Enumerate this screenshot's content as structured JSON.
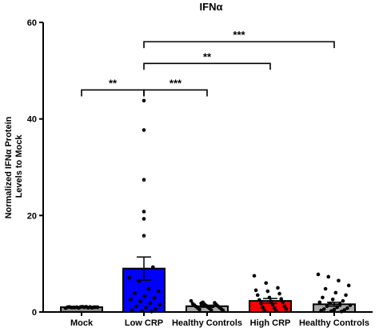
{
  "chart_data": {
    "type": "bar",
    "title": "IFNα",
    "ylabel": "Normalized IFNα Protein Levels to Mock",
    "ylabel_lines": [
      "Normalized IFNα Protein",
      "Levels to Mock"
    ],
    "xlabel": "",
    "ylim": [
      0,
      60
    ],
    "yticks": [
      0,
      20,
      40,
      60
    ],
    "categories": [
      "Mock",
      "Low CRP",
      "Healthy Controls",
      "High CRP",
      "Healthy Controls"
    ],
    "values": [
      1.0,
      9.0,
      1.2,
      2.3,
      1.6
    ],
    "errors": [
      0.1,
      2.4,
      0.2,
      0.5,
      0.4
    ],
    "bar_colors": [
      "#8c8c8c",
      "#0000ff",
      "#a8a8a8",
      "#ff0000",
      "#a8a8a8"
    ],
    "points": [
      [
        0.8,
        0.85,
        0.9,
        0.95,
        1.0,
        1.0,
        1.0,
        1.05,
        1.05,
        1.1,
        1.0,
        0.95,
        0.9,
        1.0,
        1.05,
        1.0,
        0.95,
        1.1
      ],
      [
        43.8,
        37.7,
        27.4,
        20.8,
        19.3,
        15.8,
        9.3,
        7.1,
        6.4,
        4.8,
        4.3,
        3.9,
        3.3,
        2.9,
        2.6,
        2.2,
        1.8,
        1.5,
        1.2,
        0.9,
        0.6,
        0.4,
        0.2,
        0.1
      ],
      [
        2.3,
        2.0,
        1.9,
        1.7,
        1.6,
        1.5,
        1.4,
        1.3,
        1.2,
        1.1,
        1.0,
        0.9,
        0.8,
        0.7,
        0.6,
        0.5,
        0.4,
        0.3,
        1.8,
        1.2
      ],
      [
        7.5,
        6.0,
        5.0,
        4.5,
        4.3,
        3.8,
        3.5,
        3.0,
        2.7,
        2.5,
        2.2,
        2.0,
        1.8,
        1.5,
        1.2,
        1.0,
        0.8,
        0.6,
        0.4,
        0.2
      ],
      [
        7.8,
        7.3,
        6.5,
        5.5,
        4.8,
        4.0,
        3.5,
        3.0,
        2.6,
        2.3,
        2.0,
        1.8,
        1.6,
        1.4,
        1.2,
        1.0,
        0.8,
        0.6,
        0.5,
        0.4,
        0.3,
        0.2,
        0.1
      ]
    ],
    "significance": [
      {
        "from": 0,
        "to": 1,
        "label": "**",
        "y": 46.0
      },
      {
        "from": 1,
        "to": 2,
        "label": "***",
        "y": 46.0
      },
      {
        "from": 1,
        "to": 3,
        "label": "**",
        "y": 51.5
      },
      {
        "from": 1,
        "to": 4,
        "label": "***",
        "y": 56.0
      }
    ]
  }
}
